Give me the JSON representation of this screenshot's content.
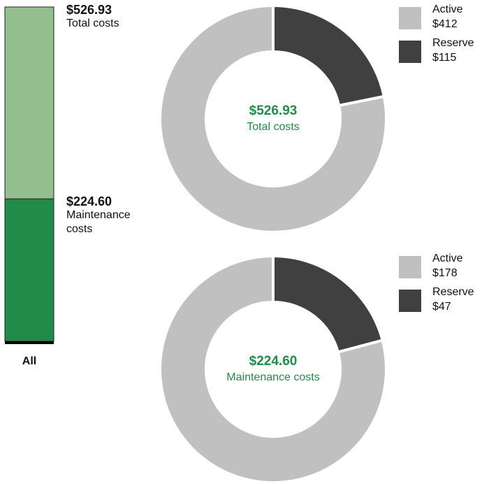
{
  "chart_data": [
    {
      "type": "bar",
      "categories": [
        "All"
      ],
      "ylim": [
        0,
        526.93
      ],
      "series": [
        {
          "name": "Total costs",
          "color": "#93bf8f",
          "values": [
            526.93
          ],
          "value_labels": [
            "$526.93"
          ]
        },
        {
          "name": "Maintenance costs",
          "color": "#218b4a",
          "values": [
            224.6
          ],
          "value_labels": [
            "$224.60"
          ]
        }
      ]
    },
    {
      "type": "donut",
      "center_title": "$526.93",
      "center_subtitle": "Total costs",
      "categories": [
        "Active",
        "Reserve"
      ],
      "values": [
        412,
        115
      ],
      "value_labels": [
        "$412",
        "$115"
      ],
      "colors": [
        "#c0c0c0",
        "#404040"
      ]
    },
    {
      "type": "donut",
      "center_title": "$224.60",
      "center_subtitle": "Maintenance costs",
      "categories": [
        "Active",
        "Reserve"
      ],
      "values": [
        178,
        47
      ],
      "value_labels": [
        "$178",
        "$47"
      ],
      "colors": [
        "#c0c0c0",
        "#404040"
      ]
    }
  ]
}
